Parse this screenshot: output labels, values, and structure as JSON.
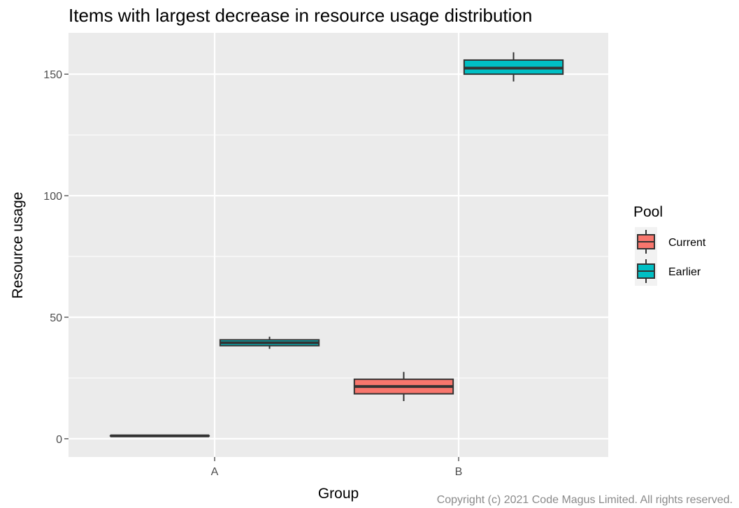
{
  "chart_data": {
    "type": "boxplot",
    "title": "Items with largest decrease in resource usage distribution",
    "xlabel": "Group",
    "ylabel": "Resource usage",
    "categories": [
      "A",
      "B"
    ],
    "ylim": [
      -7.5,
      167
    ],
    "yticks": [
      0,
      50,
      100,
      150
    ],
    "grid": true,
    "legend": {
      "title": "Pool",
      "position": "right",
      "entries": [
        {
          "name": "Current",
          "color": "#F8766D"
        },
        {
          "name": "Earlier",
          "color": "#00BFC4"
        }
      ]
    },
    "series": [
      {
        "name": "Current",
        "color": "#F8766D",
        "boxes": [
          {
            "category": "A",
            "min": 1.2,
            "q1": 1.2,
            "median": 1.2,
            "q3": 1.2,
            "max": 1.2
          },
          {
            "category": "B",
            "min": 15.5,
            "q1": 18.5,
            "median": 21.5,
            "q3": 24.5,
            "max": 27.5
          }
        ]
      },
      {
        "name": "Earlier",
        "color": "#00BFC4",
        "boxes": [
          {
            "category": "A",
            "min": 37,
            "q1": 38.3,
            "median": 39.5,
            "q3": 40.7,
            "max": 42
          },
          {
            "category": "B",
            "min": 147,
            "q1": 150,
            "median": 152.5,
            "q3": 155.8,
            "max": 159
          }
        ]
      }
    ]
  },
  "footer": {
    "copyright": "Copyright (c) 2021 Code Magus Limited. All rights reserved."
  }
}
